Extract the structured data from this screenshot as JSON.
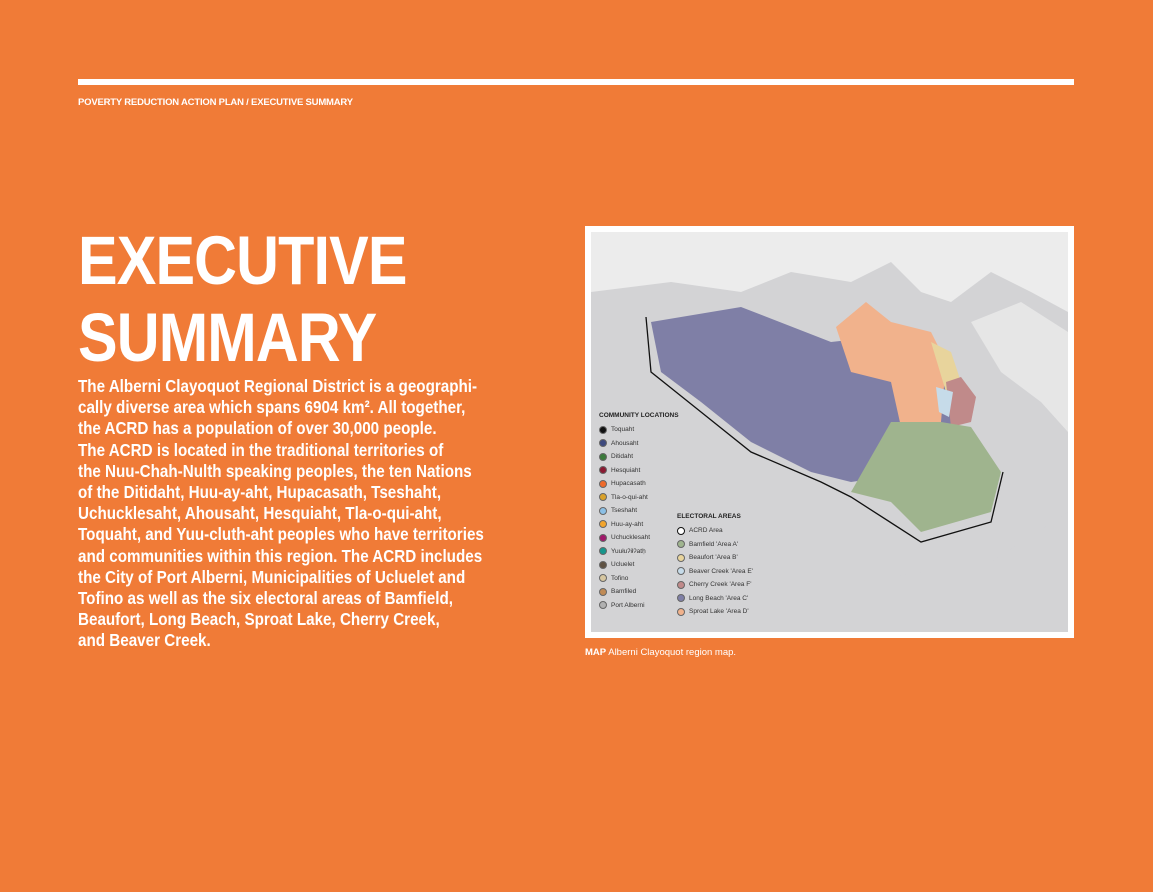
{
  "header": {
    "running_title": "POVERTY REDUCTION ACTION PLAN / EXECUTIVE SUMMARY"
  },
  "page_title": [
    "EXECUTIVE",
    "SUMMARY"
  ],
  "body_lines": [
    "The Alberni Clayoquot Regional District is a geographi-",
    "cally diverse area which spans 6904 km². All together,",
    "the ACRD has a population of over 30,000 people.",
    "The ACRD is located in the traditional territories of",
    "the Nuu-Chah-Nulth speaking peoples, the ten Nations",
    "of the Ditidaht, Huu-ay-aht, Hupacasath, Tseshaht,",
    "Uchucklesaht, Ahousaht, Hesquiaht, Tla-o-qui-aht,",
    "Toquaht, and Yuu-cluth-aht peoples who have territories",
    "and communities within this region. The ACRD includes",
    "the City of Port Alberni, Municipalities of Ucluelet and",
    "Tofino as well as the six electoral areas of Bamfield,",
    "Beaufort, Long Beach, Sproat Lake, Cherry Creek,",
    "and Beaver Creek."
  ],
  "map": {
    "community_heading": "COMMUNITY LOCATIONS",
    "communities": [
      {
        "label": "Toquaht",
        "color": "#111111"
      },
      {
        "label": "Ahousaht",
        "color": "#3e4a7e"
      },
      {
        "label": "Ditidaht",
        "color": "#3c7a3c"
      },
      {
        "label": "Hesquiaht",
        "color": "#8a1a32"
      },
      {
        "label": "Hupacasath",
        "color": "#ef6a2a"
      },
      {
        "label": "Tla-o-qui-aht",
        "color": "#d9a12a"
      },
      {
        "label": "Tseshaht",
        "color": "#8cc0e6"
      },
      {
        "label": "Huu-ay-aht",
        "color": "#f2a42c"
      },
      {
        "label": "Uchucklesaht",
        "color": "#a0186a"
      },
      {
        "label": "Yuułuʔiłʔatḥ",
        "color": "#17968c"
      },
      {
        "label": "Ucluelet",
        "color": "#5f5242"
      },
      {
        "label": "Tofino",
        "color": "#d6c6a0"
      },
      {
        "label": "Bamfiled",
        "color": "#c08b56"
      },
      {
        "label": "Port Alberni",
        "color": "#b0b0b0"
      }
    ],
    "electoral_heading": "ELECTORAL AREAS",
    "electoral_areas": [
      {
        "label": "ACRD Area",
        "color": "#ffffff"
      },
      {
        "label": "Bamfield 'Area A'",
        "color": "#9fb48e"
      },
      {
        "label": "Beaufort 'Area B'",
        "color": "#e8d49c"
      },
      {
        "label": "Beaver Creek 'Area E'",
        "color": "#c6dbe9"
      },
      {
        "label": "Cherry Creek 'Area F'",
        "color": "#c08a8a"
      },
      {
        "label": "Long Beach 'Area C'",
        "color": "#7f7fa6"
      },
      {
        "label": "Sproat Lake 'Area D'",
        "color": "#f1b28c"
      }
    ]
  },
  "caption": {
    "label": "MAP",
    "text": " Alberni Clayoquot region map."
  }
}
